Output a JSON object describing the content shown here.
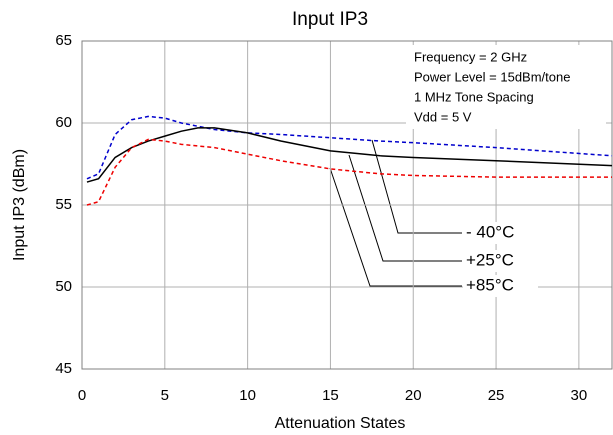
{
  "chart_data": {
    "type": "line",
    "title": "Input IP3",
    "x_label": "Attenuation States",
    "y_label": "Input IP3 (dBm)",
    "annotations": [
      "Frequency = 2 GHz",
      "Power Level = 15dBm/tone",
      "1 MHz Tone Spacing",
      "Vdd = 5 V"
    ],
    "x": [
      0.3,
      1,
      2,
      3,
      4,
      5,
      6,
      7,
      8,
      10,
      12,
      15,
      18,
      20,
      25,
      32
    ],
    "series": [
      {
        "name": "- 40°C",
        "color": "#0000cc",
        "dashed": true,
        "values": [
          56.6,
          56.9,
          59.3,
          60.2,
          60.4,
          60.3,
          60.0,
          59.8,
          59.6,
          59.4,
          59.3,
          59.1,
          58.9,
          58.8,
          58.5,
          58.0
        ]
      },
      {
        "name": "+25°C",
        "color": "#000000",
        "dashed": false,
        "values": [
          56.4,
          56.6,
          57.9,
          58.5,
          58.9,
          59.2,
          59.5,
          59.7,
          59.7,
          59.4,
          58.9,
          58.3,
          58.0,
          57.9,
          57.7,
          57.4
        ]
      },
      {
        "name": "+85°C",
        "color": "#ee0000",
        "dashed": true,
        "values": [
          55.0,
          55.2,
          57.3,
          58.5,
          59.0,
          58.9,
          58.7,
          58.6,
          58.5,
          58.1,
          57.7,
          57.2,
          56.9,
          56.8,
          56.7,
          56.7
        ]
      }
    ],
    "xlim": [
      0,
      32
    ],
    "xticks": [
      0,
      5,
      10,
      15,
      20,
      25,
      30
    ],
    "ylim": [
      45,
      65
    ],
    "yticks": [
      45,
      50,
      55,
      60,
      65
    ],
    "grid": true
  }
}
